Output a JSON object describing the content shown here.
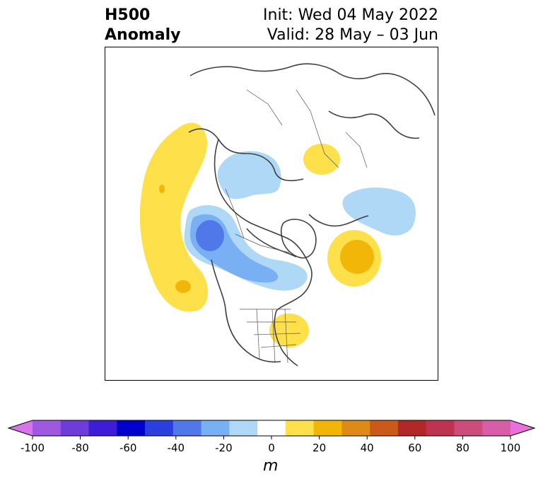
{
  "title": {
    "variable": "H500",
    "field": "Anomaly",
    "init": "Init: Wed 04 May 2022",
    "valid": "Valid: 28 May – 03 Jun"
  },
  "colorbar": {
    "unit": "m",
    "ticks": [
      "-100",
      "-80",
      "-60",
      "-40",
      "-20",
      "0",
      "20",
      "40",
      "60",
      "80",
      "100"
    ],
    "colors": [
      "#d674e8",
      "#9f58e0",
      "#6e3cd8",
      "#3d1ed6",
      "#0000cd",
      "#2a3fde",
      "#5078e8",
      "#78b0f3",
      "#aed8f6",
      "#ffffff",
      "#fde04a",
      "#f2b608",
      "#de8a16",
      "#c95a1a",
      "#b22828",
      "#c03350",
      "#cb4d7c",
      "#d65ea8",
      "#e870d8"
    ]
  },
  "map": {
    "projection": "north-polar stereographic",
    "features": [
      "positive anomaly western North America / eastern Pacific",
      "negative anomaly Gulf of Alaska / western Canada",
      "negative anomaly northern Canada",
      "positive anomaly eastern United States",
      "positive anomaly Greenland Sea / Iceland",
      "positive anomaly western Russia",
      "negative anomaly northern Eurasia / Siberia",
      "negative anomaly Arctic (Alaska / Beaufort)"
    ]
  }
}
